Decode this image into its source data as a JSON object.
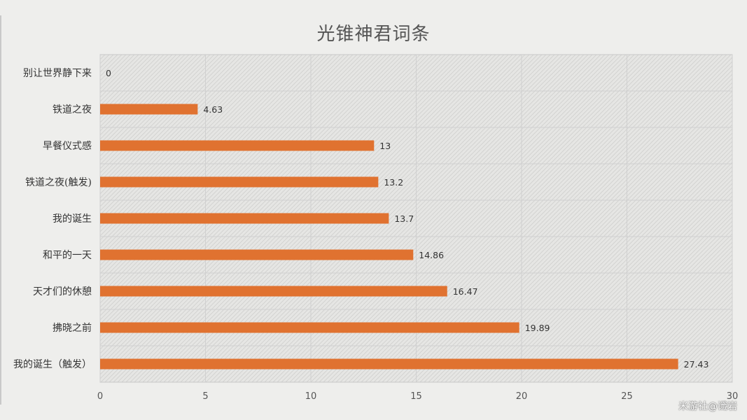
{
  "colors": {
    "bar": "#E07230",
    "gridline": "#d0d0d0",
    "plot_border": "#c8c8c8"
  },
  "watermark": "米游社@谶岩",
  "chart_data": {
    "type": "bar",
    "orientation": "horizontal",
    "title": "光锥神君词条",
    "xlabel": "",
    "ylabel": "",
    "xlim": [
      0,
      30
    ],
    "x_ticks": [
      0,
      5,
      10,
      15,
      20,
      25,
      30
    ],
    "grid": true,
    "legend": "none",
    "categories": [
      "别让世界静下来",
      "铁道之夜",
      "早餐仪式感",
      "铁道之夜(触发)",
      "我的诞生",
      "和平的一天",
      "天才们的休憩",
      "拂晓之前",
      "我的诞生（触发）"
    ],
    "values": [
      0,
      4.63,
      13,
      13.2,
      13.7,
      14.86,
      16.47,
      19.89,
      27.43
    ],
    "data_labels": [
      "0",
      "4.63",
      "13",
      "13.2",
      "13.7",
      "14.86",
      "16.47",
      "19.89",
      "27.43"
    ]
  }
}
